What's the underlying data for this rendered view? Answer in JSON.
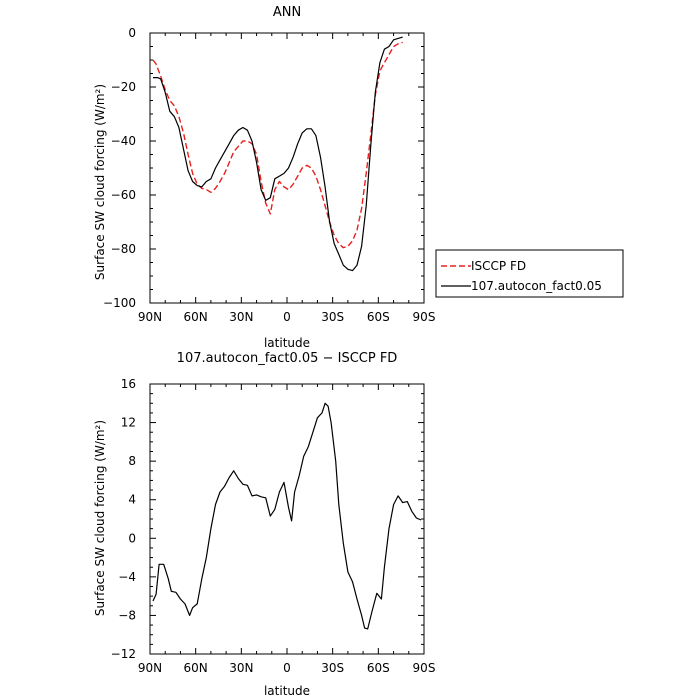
{
  "chart_data": [
    {
      "type": "line",
      "title": "ANN",
      "xlabel": "latitude",
      "ylabel": "Surface SW cloud forcing (W/m²)",
      "xlim": [
        90,
        -90
      ],
      "ylim": [
        -100,
        0
      ],
      "x_ticks": [
        90,
        60,
        30,
        0,
        -30,
        -60,
        -90
      ],
      "x_tick_labels": [
        "90N",
        "60N",
        "30N",
        "0",
        "30S",
        "60S",
        "90S"
      ],
      "y_ticks": [
        0,
        -20,
        -40,
        -60,
        -80,
        -100
      ],
      "y_tick_labels": [
        "0",
        "−20",
        "−40",
        "−60",
        "−80",
        "−100"
      ],
      "legend_position": "right",
      "series": [
        {
          "name": "ISCCP FD",
          "color": "#e8201d",
          "dash": "dashed",
          "points": [
            [
              88,
              -10
            ],
            [
              86,
              -11.5
            ],
            [
              83,
              -16
            ],
            [
              80,
              -21
            ],
            [
              77,
              -25
            ],
            [
              74,
              -27
            ],
            [
              71,
              -31
            ],
            [
              68,
              -37
            ],
            [
              65,
              -45
            ],
            [
              62,
              -52
            ],
            [
              59,
              -56
            ],
            [
              56,
              -57.5
            ],
            [
              53,
              -58
            ],
            [
              50,
              -59
            ],
            [
              47,
              -57.5
            ],
            [
              44,
              -55
            ],
            [
              41,
              -52
            ],
            [
              38,
              -48
            ],
            [
              35,
              -44
            ],
            [
              32,
              -42
            ],
            [
              29,
              -40
            ],
            [
              26,
              -40
            ],
            [
              23,
              -41
            ],
            [
              20,
              -45
            ],
            [
              17,
              -55
            ],
            [
              14,
              -63
            ],
            [
              11,
              -67
            ],
            [
              8,
              -58
            ],
            [
              5,
              -55
            ],
            [
              2,
              -57
            ],
            [
              -1,
              -58
            ],
            [
              -4,
              -56
            ],
            [
              -7,
              -53
            ],
            [
              -10,
              -50
            ],
            [
              -13,
              -49
            ],
            [
              -16,
              -50
            ],
            [
              -19,
              -53
            ],
            [
              -22,
              -58
            ],
            [
              -25,
              -64
            ],
            [
              -28,
              -70
            ],
            [
              -31,
              -75
            ],
            [
              -34,
              -78
            ],
            [
              -37,
              -79.5
            ],
            [
              -40,
              -79
            ],
            [
              -43,
              -77
            ],
            [
              -46,
              -73
            ],
            [
              -49,
              -65
            ],
            [
              -52,
              -52
            ],
            [
              -55,
              -38
            ],
            [
              -58,
              -23
            ],
            [
              -61,
              -14
            ],
            [
              -64,
              -11
            ],
            [
              -67,
              -8
            ],
            [
              -70,
              -5
            ],
            [
              -73,
              -4
            ],
            [
              -76,
              -3.5
            ]
          ]
        },
        {
          "name": "107.autocon_fact0.05",
          "color": "#000000",
          "dash": "solid",
          "points": [
            [
              88,
              -16.5
            ],
            [
              85,
              -16.5
            ],
            [
              83,
              -17
            ],
            [
              80,
              -22
            ],
            [
              77,
              -29
            ],
            [
              74,
              -31
            ],
            [
              71,
              -35
            ],
            [
              68,
              -43
            ],
            [
              65,
              -51
            ],
            [
              62,
              -55
            ],
            [
              59,
              -56.5
            ],
            [
              56,
              -57
            ],
            [
              53,
              -55
            ],
            [
              50,
              -54
            ],
            [
              47,
              -50
            ],
            [
              44,
              -47
            ],
            [
              41,
              -44
            ],
            [
              38,
              -41
            ],
            [
              35,
              -38
            ],
            [
              32,
              -36
            ],
            [
              29,
              -35
            ],
            [
              26,
              -36
            ],
            [
              23,
              -40
            ],
            [
              20,
              -48
            ],
            [
              17,
              -58
            ],
            [
              14,
              -62
            ],
            [
              11,
              -61
            ],
            [
              8,
              -54
            ],
            [
              5,
              -53
            ],
            [
              2,
              -52
            ],
            [
              -1,
              -50
            ],
            [
              -4,
              -46
            ],
            [
              -7,
              -41
            ],
            [
              -10,
              -37
            ],
            [
              -13,
              -35.5
            ],
            [
              -16,
              -35.5
            ],
            [
              -19,
              -38
            ],
            [
              -22,
              -46
            ],
            [
              -25,
              -57
            ],
            [
              -28,
              -70
            ],
            [
              -31,
              -78
            ],
            [
              -34,
              -82
            ],
            [
              -37,
              -86
            ],
            [
              -40,
              -87.5
            ],
            [
              -43,
              -88
            ],
            [
              -46,
              -86
            ],
            [
              -49,
              -79
            ],
            [
              -52,
              -64
            ],
            [
              -55,
              -42
            ],
            [
              -58,
              -22
            ],
            [
              -61,
              -11
            ],
            [
              -64,
              -6
            ],
            [
              -67,
              -5
            ],
            [
              -70,
              -2.5
            ],
            [
              -73,
              -2
            ],
            [
              -76,
              -1.5
            ]
          ]
        }
      ]
    },
    {
      "type": "line",
      "title": "107.autocon_fact0.05 − ISCCP FD",
      "xlabel": "latitude",
      "ylabel": "Surface SW cloud forcing (W/m²)",
      "xlim": [
        90,
        -90
      ],
      "ylim": [
        -12,
        16
      ],
      "x_ticks": [
        90,
        60,
        30,
        0,
        -30,
        -60,
        -90
      ],
      "x_tick_labels": [
        "90N",
        "60N",
        "30N",
        "0",
        "30S",
        "60S",
        "90S"
      ],
      "y_ticks": [
        16,
        12,
        8,
        4,
        0,
        -4,
        -8,
        -12
      ],
      "y_tick_labels": [
        "16",
        "12",
        "8",
        "4",
        "0",
        "−4",
        "−8",
        "−12"
      ],
      "series": [
        {
          "color": "#000000",
          "dash": "solid",
          "points": [
            [
              88,
              -6.5
            ],
            [
              86,
              -5.8
            ],
            [
              84,
              -2.7
            ],
            [
              81,
              -2.7
            ],
            [
              78,
              -4.2
            ],
            [
              76,
              -5.5
            ],
            [
              73,
              -5.6
            ],
            [
              70,
              -6.3
            ],
            [
              67,
              -6.8
            ],
            [
              64,
              -8
            ],
            [
              62,
              -7.2
            ],
            [
              59,
              -6.8
            ],
            [
              56,
              -4.2
            ],
            [
              53,
              -2
            ],
            [
              50,
              1
            ],
            [
              47,
              3.5
            ],
            [
              44,
              4.8
            ],
            [
              41,
              5.4
            ],
            [
              38,
              6.3
            ],
            [
              35,
              7
            ],
            [
              32,
              6.2
            ],
            [
              29,
              5.6
            ],
            [
              26,
              5.5
            ],
            [
              23,
              4.4
            ],
            [
              20,
              4.5
            ],
            [
              17,
              4.3
            ],
            [
              14,
              4.2
            ],
            [
              11,
              2.3
            ],
            [
              8,
              3
            ],
            [
              5,
              4.8
            ],
            [
              2,
              5.8
            ],
            [
              -1,
              3.2
            ],
            [
              -3,
              1.8
            ],
            [
              -5,
              4.8
            ],
            [
              -8,
              6.5
            ],
            [
              -11,
              8.5
            ],
            [
              -14,
              9.5
            ],
            [
              -17,
              11
            ],
            [
              -20,
              12.5
            ],
            [
              -23,
              13
            ],
            [
              -25,
              14
            ],
            [
              -27,
              13.7
            ],
            [
              -29,
              12
            ],
            [
              -32,
              8
            ],
            [
              -34,
              3.5
            ],
            [
              -37,
              -0.5
            ],
            [
              -40,
              -3.5
            ],
            [
              -43,
              -4.5
            ],
            [
              -46,
              -6.3
            ],
            [
              -49,
              -8
            ],
            [
              -51,
              -9.3
            ],
            [
              -53,
              -9.4
            ],
            [
              -56,
              -7.5
            ],
            [
              -59,
              -5.7
            ],
            [
              -62,
              -6.3
            ],
            [
              -64,
              -3
            ],
            [
              -67,
              1
            ],
            [
              -70,
              3.5
            ],
            [
              -73,
              4.4
            ],
            [
              -76,
              3.7
            ],
            [
              -79,
              3.8
            ],
            [
              -82,
              2.8
            ],
            [
              -85,
              2.1
            ],
            [
              -88,
              1.9
            ]
          ]
        }
      ]
    }
  ]
}
